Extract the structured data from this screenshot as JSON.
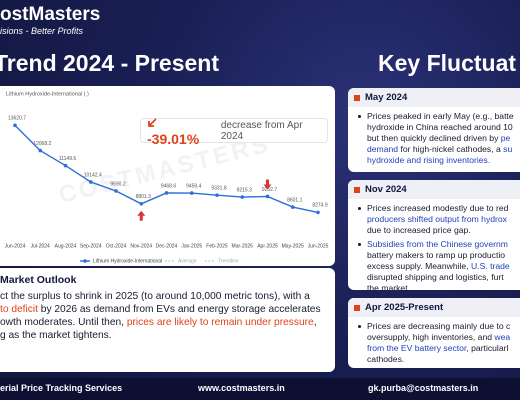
{
  "header": {
    "brand": "ostMasters",
    "tagline": "isions - Better Profits",
    "left_title": "Trend 2024 - Present",
    "right_title": "Key Fluctuat"
  },
  "chart_data": {
    "type": "line",
    "series_title": "Lithium Hydroxide-International ( )",
    "watermark": "COSTMASTERS",
    "categories": [
      "Jun-2024",
      "Jul-2024",
      "Aug-2024",
      "Sep-2024",
      "Oct-2024",
      "Nov-2024",
      "Dec-2024",
      "Jan-2025",
      "Feb-2025",
      "Mar-2025",
      "Apr-2025",
      "May-2025",
      "Jun-2025"
    ],
    "series": [
      {
        "name": "Lithium Hydroxide-International",
        "color": "#2f6fd8",
        "values": [
          13620.7,
          12068.2,
          11149.6,
          10142.4,
          9590.2,
          8801.3,
          9468.6,
          9459.4,
          9331.8,
          9215.3,
          9252.7,
          8601.1,
          8274.9
        ]
      }
    ],
    "legend_extra": [
      "Average",
      "Trendline"
    ],
    "ylim": [
      7500,
      14500
    ],
    "change_label": "-39.01%",
    "change_text": "decrease from Apr 2024"
  },
  "outlook": {
    "title": "Market Outlook",
    "lines": [
      [
        "ct the surplus to shrink in 2025 (to around 10,000 metric tons), with a"
      ],
      [
        {
          "text": " to deficit",
          "color": "#e0421b"
        },
        " by 2026 as demand from EVs and energy storage accelerates"
      ],
      [
        "owth moderates. Until then, ",
        {
          "text": "prices are likely to remain under pressure",
          "color": "#e0421b"
        },
        ","
      ],
      [
        "g as the market tightens."
      ]
    ]
  },
  "fluctuations": [
    {
      "title": "May 2024",
      "bullets": [
        [
          [
            "Prices peaked in early May (e.g., batte"
          ],
          [
            "hydroxide in China reached around 10"
          ],
          [
            "but then quickly declined  driven by ",
            {
              "text": "pe",
              "color": "#1f3fbf"
            }
          ],
          [
            {
              "text": "demand",
              "color": "#1f3fbf"
            },
            " for high-nickel cathodes, a ",
            {
              "text": "su",
              "color": "#1f3fbf"
            }
          ],
          [
            {
              "text": "hydroxide and rising inventories.",
              "color": "#1f3fbf"
            }
          ]
        ]
      ]
    },
    {
      "title": "Nov 2024",
      "bullets": [
        [
          [
            "Prices increased modestly due to red"
          ],
          [
            {
              "text": "producers shifted output from hydrox",
              "color": "#1f3fbf"
            }
          ],
          [
            "due to increased price gap."
          ]
        ],
        [
          [
            {
              "text": "Subsidies from the Chinese governm",
              "color": "#1f3fbf"
            }
          ],
          [
            "battery makers to ramp up productio"
          ],
          [
            "excess supply. Meanwhile, ",
            {
              "text": "U.S. trade",
              "color": "#1f3fbf"
            }
          ],
          [
            "disrupted shipping and logistics, furt"
          ],
          [
            "the market."
          ]
        ]
      ]
    },
    {
      "title": "Apr 2025-Present",
      "bullets": [
        [
          [
            "Prices are decreasing mainly due to c"
          ],
          [
            "oversupply, high inventories, and ",
            {
              "text": "wea",
              "color": "#1f3fbf"
            }
          ],
          [
            {
              "text": "from the EV battery sector",
              "color": "#1f3fbf"
            },
            ", particularl"
          ],
          [
            "cathodes."
          ]
        ]
      ]
    }
  ],
  "footer": [
    "erial Price Tracking Services",
    "www.costmasters.in",
    "gk.purba@costmasters.in"
  ]
}
